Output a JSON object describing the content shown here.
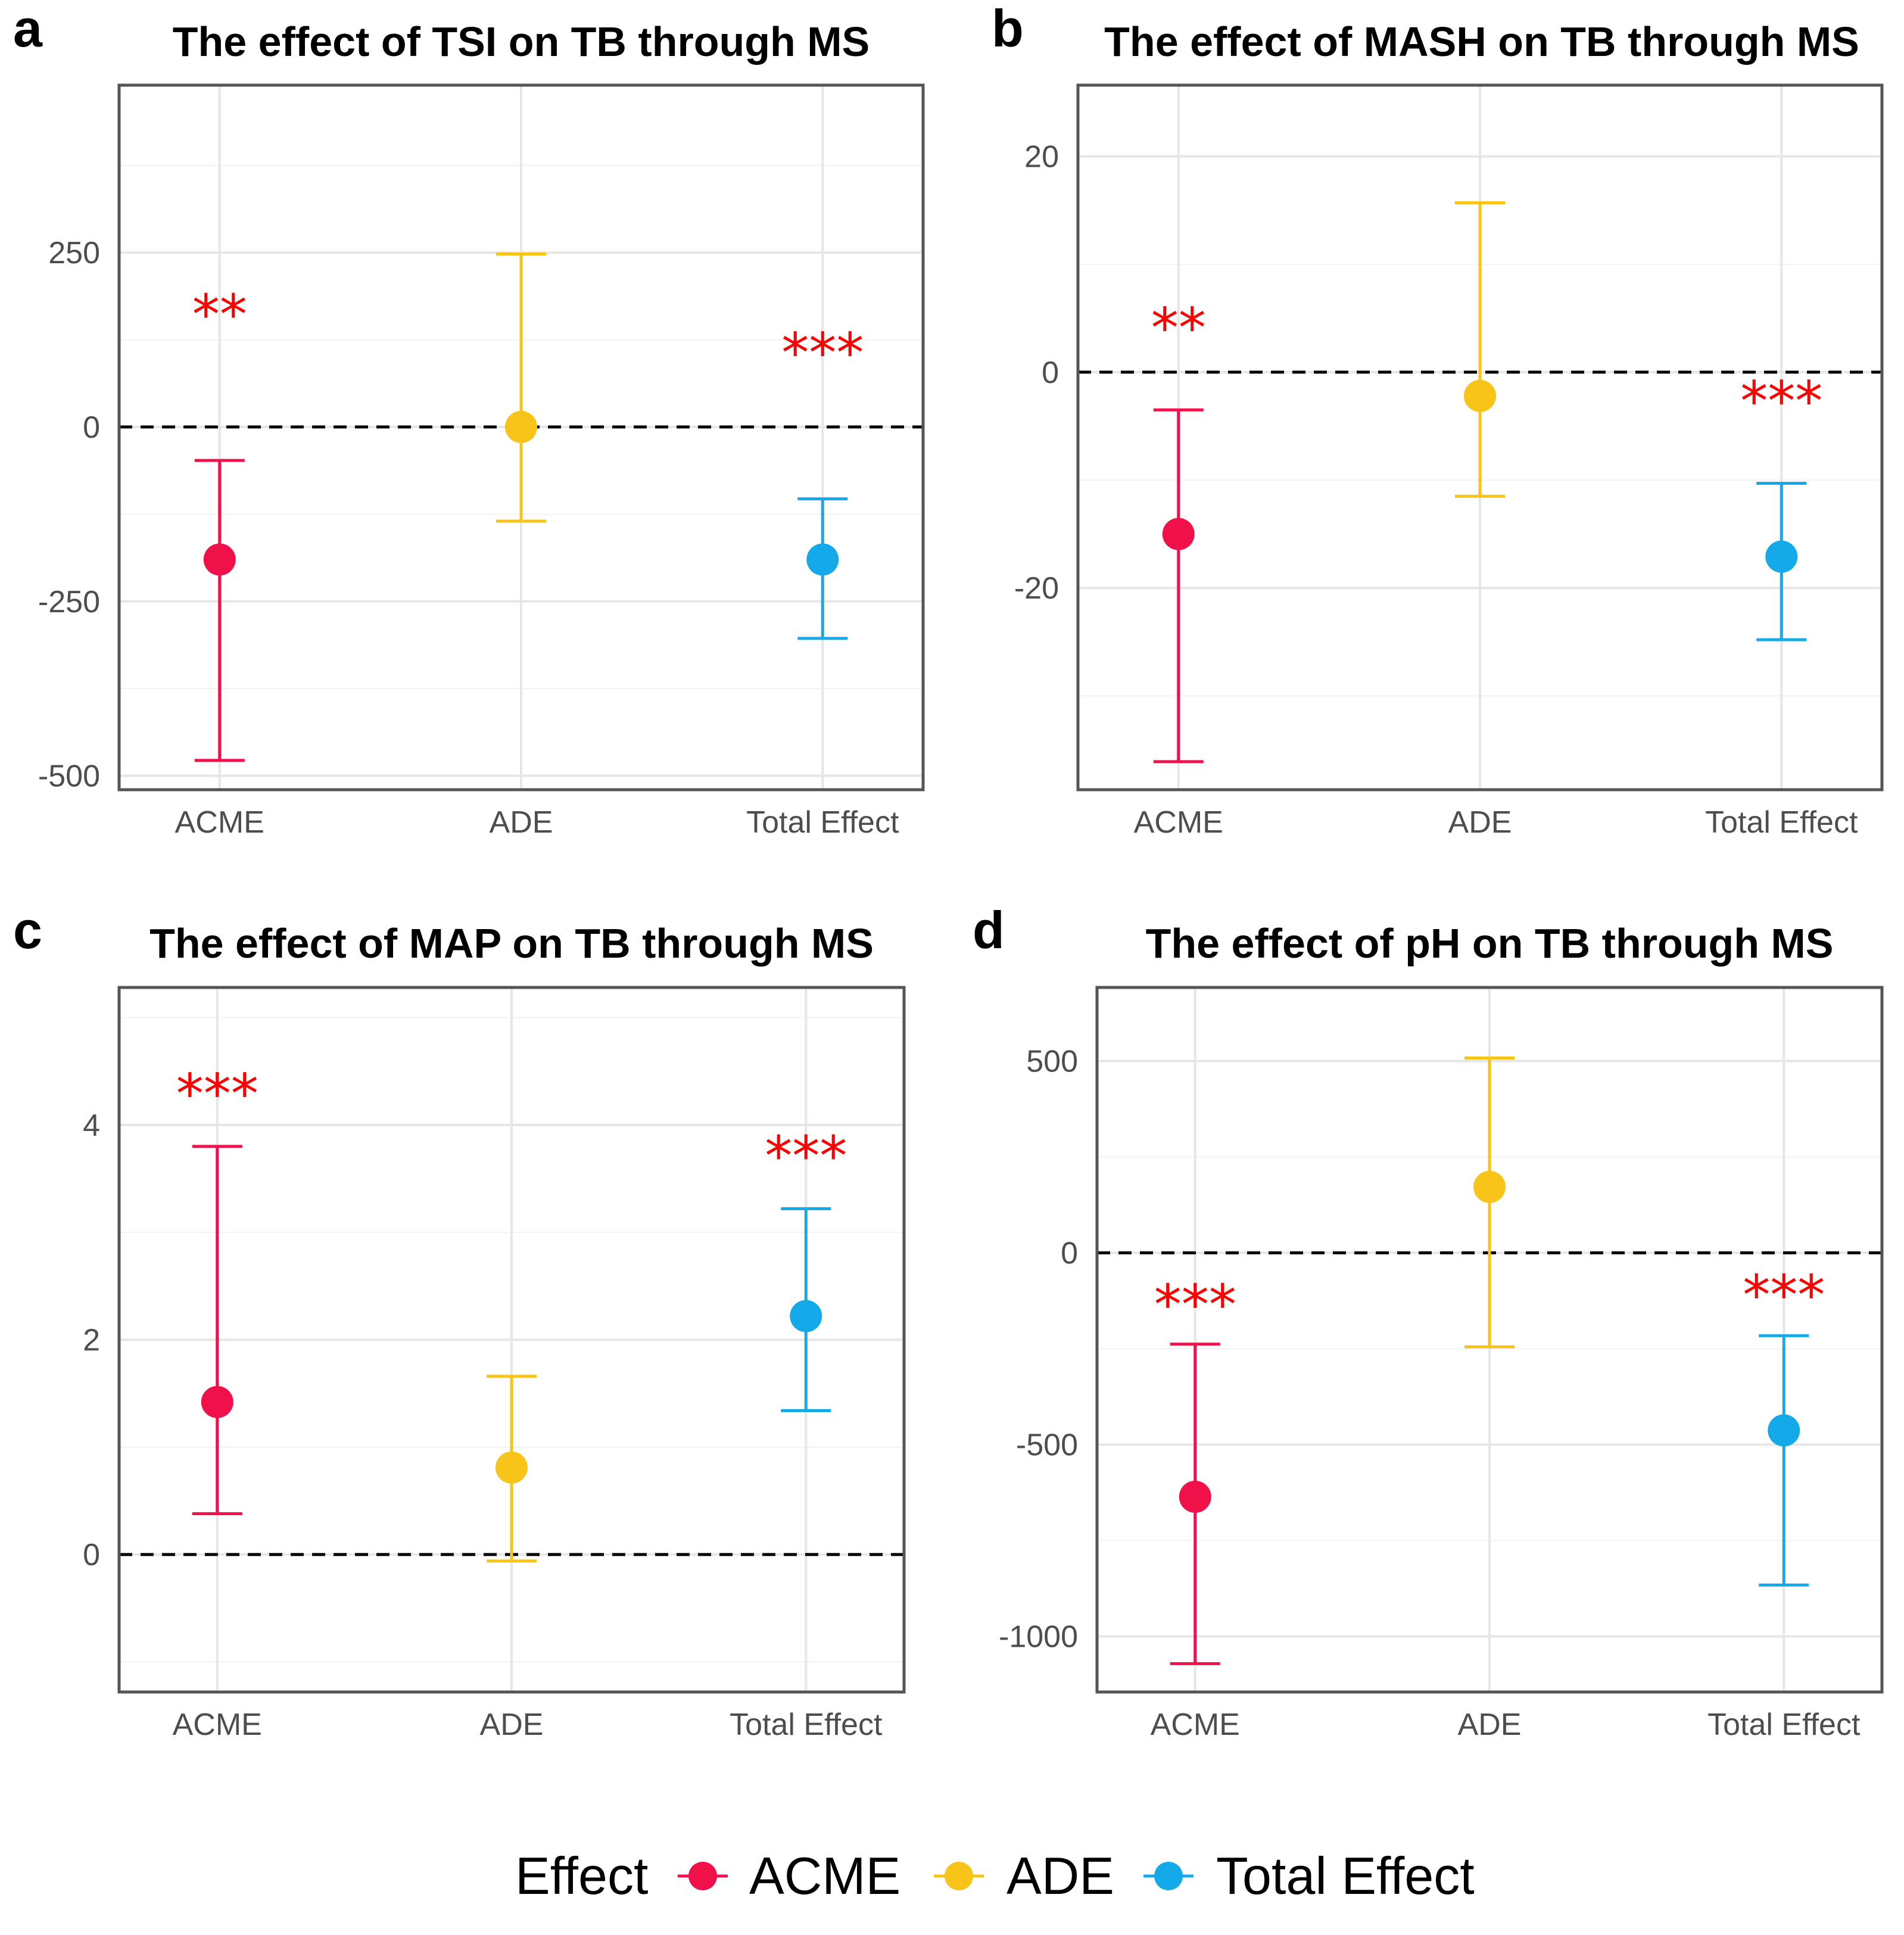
{
  "colors": {
    "ACME": "#f0114a",
    "ADE": "#f9c41a",
    "Total Effect": "#14a9e8",
    "significance": "#ff0000",
    "reference_line": "#000000"
  },
  "legend": {
    "title": "Effect",
    "entries": [
      "ACME",
      "ADE",
      "Total Effect"
    ]
  },
  "chart_data": [
    {
      "panel": "a",
      "type": "pointrange",
      "title": "The effect of TSI on TB through MS",
      "categories": [
        "ACME",
        "ADE",
        "Total Effect"
      ],
      "estimate": [
        -190,
        0,
        -190
      ],
      "ci_lower": [
        -478,
        -135,
        -303
      ],
      "ci_upper": [
        -48,
        248,
        -103
      ],
      "significance": [
        "**",
        "",
        "***"
      ],
      "significance_y": [
        175,
        null,
        120
      ],
      "reference_line_y": 0,
      "yticks": [
        -500,
        -250,
        0,
        250
      ],
      "ytick_labels": [
        "-500",
        "-250",
        "0",
        "250"
      ],
      "ylim": [
        -520,
        490
      ],
      "xlabel": "",
      "ylabel": ""
    },
    {
      "panel": "b",
      "type": "pointrange",
      "title": "The effect of MASH on TB through MS",
      "categories": [
        "ACME",
        "ADE",
        "Total Effect"
      ],
      "estimate": [
        -15,
        -2.2,
        -17.1
      ],
      "ci_lower": [
        -36.1,
        -11.5,
        -24.8
      ],
      "ci_upper": [
        -3.5,
        15.7,
        -10.3
      ],
      "significance": [
        "**",
        "",
        "***"
      ],
      "significance_y": [
        5,
        null,
        -1.8
      ],
      "reference_line_y": 0,
      "yticks": [
        -20,
        0,
        20
      ],
      "ytick_labels": [
        "-20",
        "0",
        "20"
      ],
      "ylim": [
        -38.7,
        26.6
      ],
      "xlabel": "",
      "ylabel": ""
    },
    {
      "panel": "c",
      "type": "pointrange",
      "title": "The effect of MAP on TB through MS",
      "categories": [
        "ACME",
        "ADE",
        "Total Effect"
      ],
      "estimate": [
        1.42,
        0.81,
        2.22
      ],
      "ci_lower": [
        0.38,
        -0.06,
        1.34
      ],
      "ci_upper": [
        3.8,
        1.66,
        3.22
      ],
      "significance": [
        "***",
        "",
        "***"
      ],
      "significance_y": [
        4.38,
        null,
        3.8
      ],
      "reference_line_y": 0,
      "yticks": [
        0,
        2,
        4
      ],
      "ytick_labels": [
        "0",
        "2",
        "4"
      ],
      "ylim": [
        -1.28,
        5.28
      ],
      "xlabel": "",
      "ylabel": ""
    },
    {
      "panel": "d",
      "type": "pointrange",
      "title": "The effect of pH on TB through MS",
      "categories": [
        "ACME",
        "ADE",
        "Total Effect"
      ],
      "estimate": [
        -636,
        172,
        -463
      ],
      "ci_lower": [
        -1071,
        -245,
        -866
      ],
      "ci_upper": [
        -238,
        508,
        -216
      ],
      "significance": [
        "***",
        "",
        "***"
      ],
      "significance_y": [
        -110,
        null,
        -85
      ],
      "reference_line_y": 0,
      "yticks": [
        -1000,
        -500,
        0,
        500
      ],
      "ytick_labels": [
        "-1000",
        "-500",
        "0",
        "500"
      ],
      "ylim": [
        -1145,
        692
      ],
      "xlabel": "",
      "ylabel": ""
    }
  ]
}
